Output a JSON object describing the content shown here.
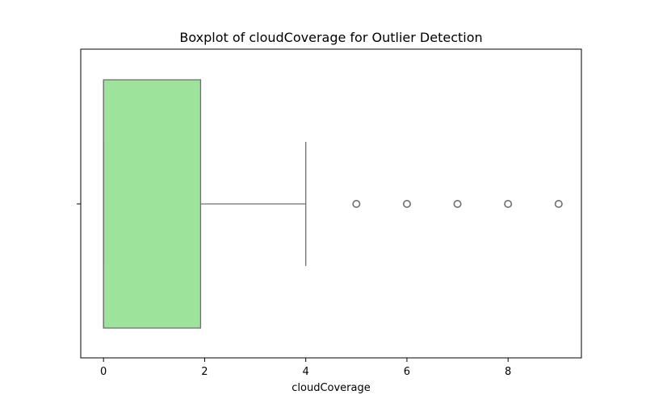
{
  "chart_data": {
    "type": "boxplot",
    "title": "Boxplot of cloudCoverage for Outlier Detection",
    "xlabel": "cloudCoverage",
    "ylabel": "",
    "xlim": [
      -0.45,
      9.45
    ],
    "xticks": [
      0,
      2,
      4,
      6,
      8
    ],
    "tick_labels": [
      "0",
      "2",
      "4",
      "6",
      "8"
    ],
    "grid": false,
    "orientation": "horizontal",
    "box": {
      "min": 0,
      "q1": 0,
      "median": 0,
      "q3": 1.92,
      "whisker_high": 4,
      "outliers": [
        5,
        6,
        7,
        8,
        9
      ]
    },
    "colors": {
      "box_fill": "#9de39b",
      "line": "#707070",
      "outlier": "#707070"
    }
  }
}
